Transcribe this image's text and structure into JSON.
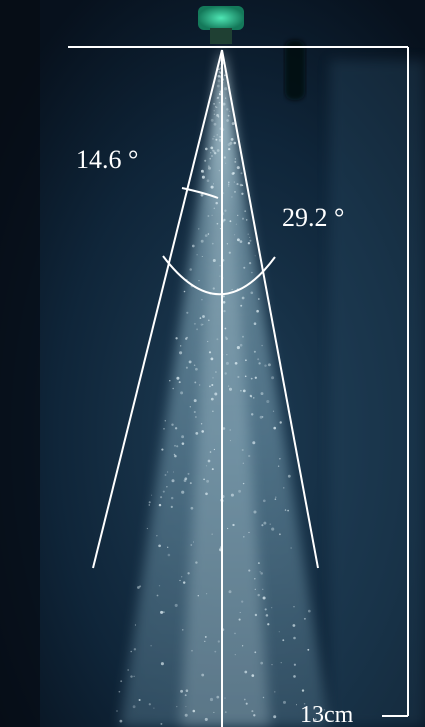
{
  "image": {
    "background": "#0b1a2a",
    "spray_color": "#9fc6d6",
    "line_color": "#ffffff",
    "nozzle_color": "#2bd19a"
  },
  "annotations": {
    "half_angle": "14.6 °",
    "full_angle": "29.2 °",
    "scale_length": "13cm"
  }
}
